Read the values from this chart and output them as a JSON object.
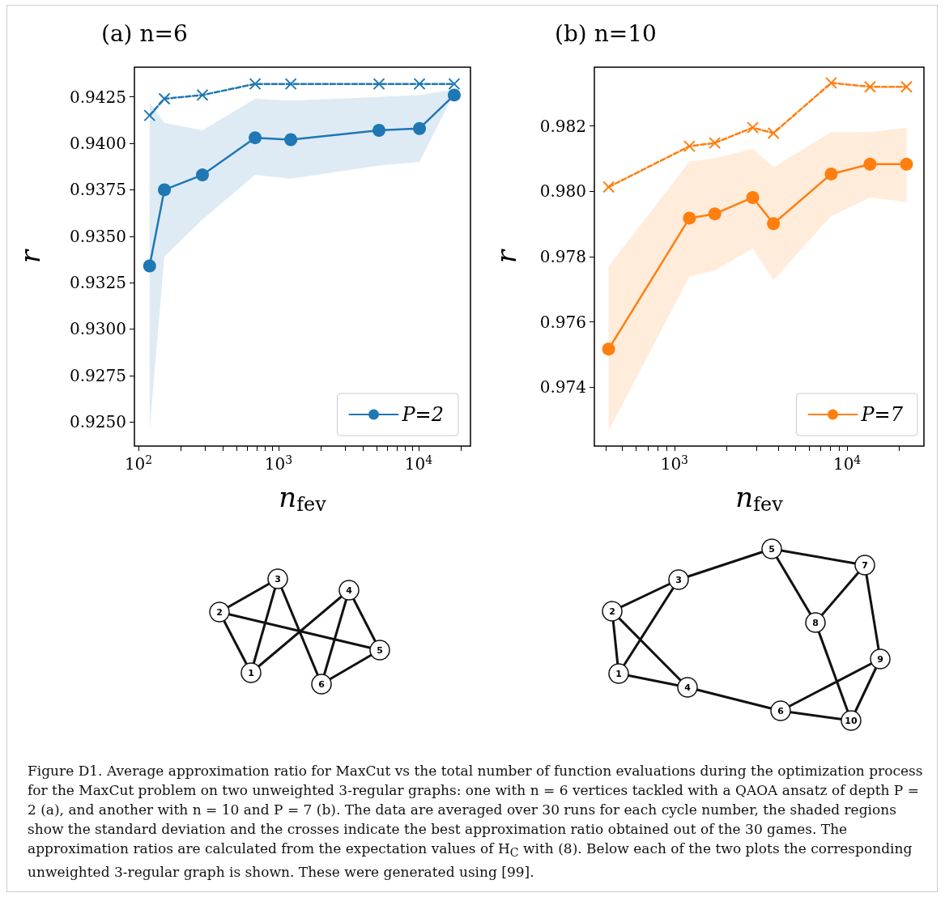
{
  "chart_data": [
    {
      "type": "line",
      "title": "(a) n=6",
      "xlabel": "n$_{fev}$",
      "ylabel": "r",
      "log": "x",
      "xlim": [
        93.5,
        23440
      ],
      "ylim": [
        0.9237,
        0.9441
      ],
      "xticks": [
        {
          "value": 100,
          "label": "10$^{2}$"
        },
        {
          "value": 200,
          "label": null
        },
        {
          "value": 300,
          "label": null
        },
        {
          "value": 400,
          "label": null
        },
        {
          "value": 500,
          "label": null
        },
        {
          "value": 600,
          "label": null
        },
        {
          "value": 700,
          "label": null
        },
        {
          "value": 800,
          "label": null
        },
        {
          "value": 900,
          "label": null
        },
        {
          "value": 1000,
          "label": "10$^{3}$"
        },
        {
          "value": 2000,
          "label": null
        },
        {
          "value": 3000,
          "label": null
        },
        {
          "value": 4000,
          "label": null
        },
        {
          "value": 5000,
          "label": null
        },
        {
          "value": 6000,
          "label": null
        },
        {
          "value": 7000,
          "label": null
        },
        {
          "value": 8000,
          "label": null
        },
        {
          "value": 9000,
          "label": null
        },
        {
          "value": 10000,
          "label": "10$^{4}$"
        },
        {
          "value": 20000,
          "label": null
        }
      ],
      "yticks": [
        {
          "value": 0.925,
          "label": "0.9250"
        },
        0.9275,
        {
          "value": 0.93,
          "label": "0.9300"
        },
        0.9325,
        {
          "value": 0.935,
          "label": "0.9350"
        },
        0.9375,
        {
          "value": 0.94,
          "label": "0.9400"
        },
        0.9425
      ],
      "x": [
        120,
        153,
        286,
        680,
        1222,
        5210,
        10140,
        17950
      ],
      "series": [
        {
          "name": "P=2",
          "color": "#1f77b4",
          "marker": "circle",
          "line_style": "solid",
          "values": [
            0.9334,
            0.9375,
            0.9383,
            0.9403,
            0.9402,
            0.9407,
            0.9408,
            0.9426
          ],
          "lower": [
            0.9246,
            0.9339,
            0.9359,
            0.9383,
            0.9381,
            0.9388,
            0.939,
            0.9427
          ],
          "upper": [
            0.9422,
            0.9411,
            0.9407,
            0.9424,
            0.9423,
            0.9425,
            0.9426,
            0.9429
          ]
        },
        {
          "color": "#1f77b4",
          "marker": "cross",
          "line_style": "dashed",
          "values": [
            0.9415,
            0.9424,
            0.9426,
            0.9432,
            0.9432,
            0.9432,
            0.9432,
            0.9432
          ]
        }
      ],
      "legend": "bottom right",
      "grid": false
    },
    {
      "type": "line",
      "title": "(b) n=10",
      "xlabel": "n$_{fev}$",
      "ylabel": "r",
      "log": "x",
      "xlim": [
        344,
        27860
      ],
      "ylim": [
        0.9722,
        0.9838
      ],
      "xticks": [
        {
          "value": 400,
          "label": null
        },
        {
          "value": 500,
          "label": null
        },
        {
          "value": 600,
          "label": null
        },
        {
          "value": 700,
          "label": null
        },
        {
          "value": 800,
          "label": null
        },
        {
          "value": 900,
          "label": null
        },
        {
          "value": 1000,
          "label": "10$^{3}$"
        },
        {
          "value": 2000,
          "label": null
        },
        {
          "value": 3000,
          "label": null
        },
        {
          "value": 4000,
          "label": null
        },
        {
          "value": 5000,
          "label": null
        },
        {
          "value": 6000,
          "label": null
        },
        {
          "value": 7000,
          "label": null
        },
        {
          "value": 8000,
          "label": null
        },
        {
          "value": 9000,
          "label": null
        },
        {
          "value": 10000,
          "label": "10$^{4}$"
        },
        {
          "value": 20000,
          "label": null
        }
      ],
      "yticks": [
        0.974,
        0.976,
        0.978,
        {
          "value": 0.98,
          "label": "0.980"
        },
        0.982
      ],
      "x": [
        416,
        1222,
        1713,
        2843,
        3745,
        8090,
        13580,
        22080
      ],
      "series": [
        {
          "name": "P=7",
          "color": "#ff7f0e",
          "marker": "circle",
          "line_style": "solid",
          "values": [
            0.97517,
            0.97918,
            0.97931,
            0.97981,
            0.97901,
            0.98053,
            0.98083,
            0.98083
          ],
          "lower": [
            0.97267,
            0.97739,
            0.97758,
            0.97825,
            0.97728,
            0.97924,
            0.97981,
            0.97967
          ],
          "upper": [
            0.97771,
            0.98091,
            0.98101,
            0.9813,
            0.98074,
            0.98181,
            0.98181,
            0.98194
          ]
        },
        {
          "color": "#ff7f0e",
          "marker": "cross",
          "line_style": "dashed",
          "values": [
            0.98013,
            0.98138,
            0.98148,
            0.98195,
            0.98178,
            0.98332,
            0.9832,
            0.9832
          ]
        }
      ],
      "legend": "bottom right",
      "grid": false,
      "annotations": [
        "Figure D1. Average approximation ratio for MaxCut vs the total number of function evaluations during the optimization process for the MaxCut problem on two unweighted 3-regular graphs: one with n = 6 vertices tackled with a QAOA ansatz of depth P = 2 (a), and another with n = 10 and P = 7 (b). The data are averaged over 30 runs for each cycle number, the shaded regions show the standard deviation and the crosses indicate the best approximation ratio obtained out of the 30 games. The approximation ratios are calculated from the expectation values of H$_{C}$ with (8). Below each of the two plots the corresponding unweighted 3-regular graph is shown. These were generated using [99]."
      ]
    },
    {
      "type": "other",
      "annotations": [
        "1",
        "2",
        "3",
        "4",
        "5",
        "6"
      ]
    },
    {
      "type": "other",
      "annotations": [
        "1",
        "2",
        "3",
        "4",
        "5",
        "6",
        "7",
        "8",
        "9",
        "10"
      ]
    }
  ]
}
